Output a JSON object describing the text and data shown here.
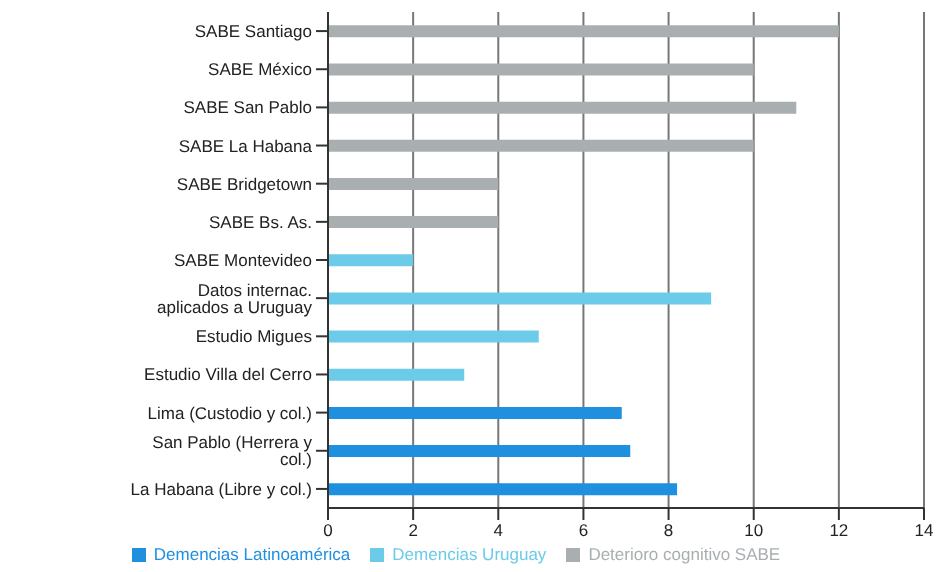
{
  "chart_data": {
    "type": "bar",
    "orientation": "horizontal",
    "stacked": true,
    "categories": [
      "SABE Santiago",
      "SABE México",
      "SABE San Pablo",
      "SABE La Habana",
      "SABE Bridgetown",
      "SABE Bs. As.",
      "SABE Montevideo",
      "Datos internac. aplicados a Uruguay",
      "Estudio Migues",
      "Estudio Villa del Cerro",
      "Lima (Custodio y col.)",
      "San Pablo (Herrera y col.)",
      "La Habana (Libre y col.)"
    ],
    "series": [
      {
        "name": "Demencias Latinoamérica",
        "color": "#1f8fe0",
        "values": [
          null,
          null,
          null,
          null,
          null,
          null,
          null,
          null,
          null,
          null,
          6.9,
          7.1,
          8.2
        ]
      },
      {
        "name": "Demencias Uruguay",
        "color": "#6ccbe8",
        "values": [
          null,
          null,
          null,
          null,
          null,
          null,
          2,
          9,
          4.95,
          3.2,
          null,
          null,
          null
        ]
      },
      {
        "name": "Deterioro cognitivo SABE",
        "color": "#a9afb1",
        "values": [
          12,
          10,
          11,
          10,
          4,
          4,
          null,
          null,
          null,
          null,
          null,
          null,
          null
        ]
      }
    ],
    "xlim": [
      0,
      14
    ],
    "xticks": [
      0,
      2,
      4,
      6,
      8,
      10,
      12,
      14
    ],
    "grid": "x",
    "legend": "bottom"
  }
}
